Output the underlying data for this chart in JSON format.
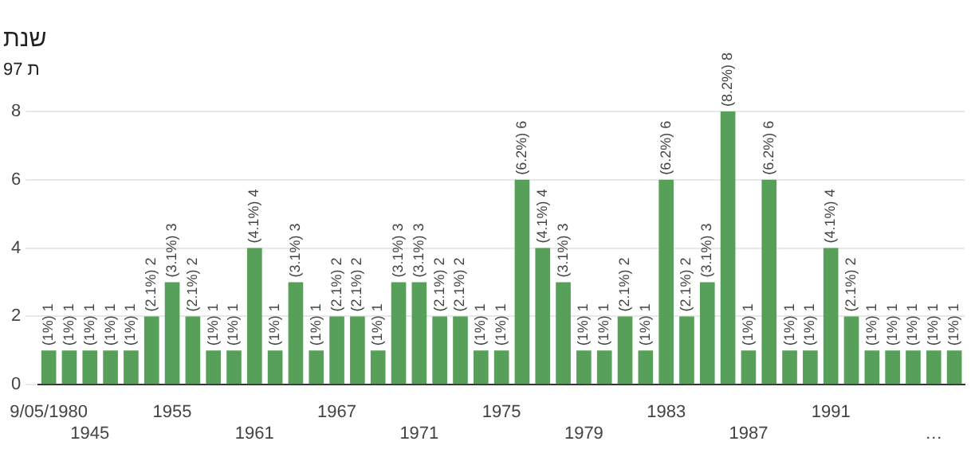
{
  "chart_data": {
    "type": "bar",
    "title": "שנת",
    "subtitle": "97 ת",
    "categories": [
      "9/05/1980",
      null,
      "1945",
      null,
      null,
      null,
      "1955",
      null,
      null,
      null,
      "1961",
      null,
      null,
      null,
      "1967",
      null,
      null,
      null,
      "1971",
      null,
      null,
      null,
      "1975",
      null,
      null,
      null,
      "1979",
      null,
      null,
      null,
      "1983",
      null,
      null,
      null,
      "1987",
      null,
      null,
      null,
      "1991",
      null,
      null,
      null,
      null,
      "…",
      null
    ],
    "values": [
      1,
      1,
      1,
      1,
      1,
      2,
      3,
      2,
      1,
      1,
      4,
      1,
      3,
      1,
      2,
      2,
      1,
      3,
      3,
      2,
      2,
      1,
      1,
      6,
      4,
      3,
      1,
      1,
      2,
      1,
      6,
      2,
      3,
      8,
      1,
      6,
      1,
      1,
      4,
      2,
      1,
      1,
      1,
      1,
      1
    ],
    "value_labels": [
      "(1%) 1",
      "(1%) 1",
      "(1%) 1",
      "(1%) 1",
      "(1%) 1",
      "(2.1%) 2",
      "(3.1%) 3",
      "(2.1%) 2",
      "(1%) 1",
      "(1%) 1",
      "(4.1%) 4",
      "(1%) 1",
      "(3.1%) 3",
      "(1%) 1",
      "(2.1%) 2",
      "(2.1%) 2",
      "(1%) 1",
      "(3.1%) 3",
      "(3.1%) 3",
      "(2.1%) 2",
      "(2.1%) 2",
      "(1%) 1",
      "(1%) 1",
      "(6.2%) 6",
      "(4.1%) 4",
      "(3.1%) 3",
      "(1%) 1",
      "(1%) 1",
      "(2.1%) 2",
      "(1%) 1",
      "(6.2%) 6",
      "(2.1%) 2",
      "(3.1%) 3",
      "(8.2%) 8",
      "(1%) 1",
      "(6.2%) 6",
      "(1%) 1",
      "(1%) 1",
      "(4.1%) 4",
      "(2.1%) 2",
      "(1%) 1",
      "(1%) 1",
      "(1%) 1",
      "(1%) 1",
      "(1%) 1"
    ],
    "color": "#57a05a",
    "ylim": [
      0,
      8
    ],
    "yticks": [
      0,
      2,
      4,
      6,
      8
    ],
    "grid": "y",
    "legend": false
  }
}
